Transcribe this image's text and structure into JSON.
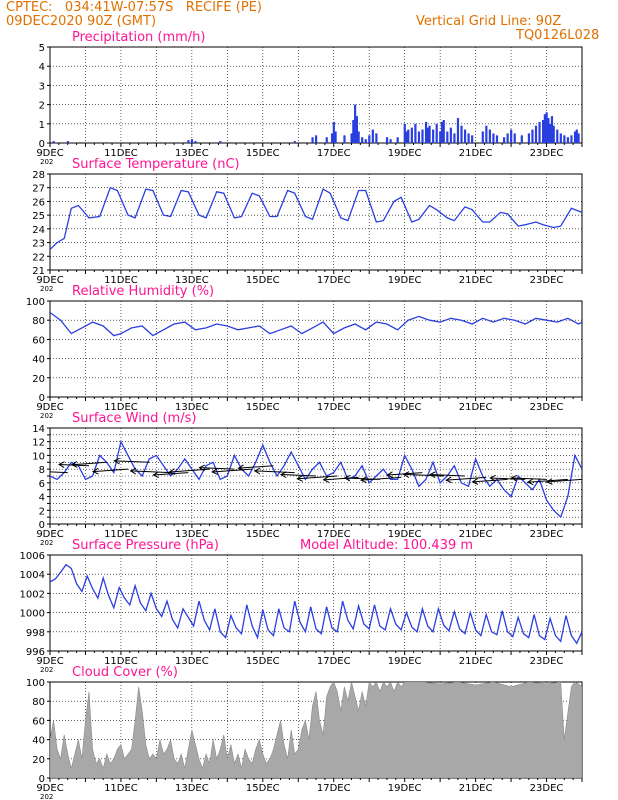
{
  "header": {
    "line1": "CPTEC:   034:41W-07:57S   RECIFE (PE)",
    "line2": "09DEC2020 90Z (GMT)",
    "grid_line": "Vertical Grid Line: 90Z",
    "code": "TQ0126L028"
  },
  "colors": {
    "accent": "#e07000",
    "title": "#ff1493",
    "series": "#2a3fe0",
    "cloud": "#a8a8a8",
    "arrow": "#000000"
  },
  "x_labels": [
    "9DEC",
    "11DEC",
    "13DEC",
    "15DEC",
    "17DEC",
    "19DEC",
    "21DEC",
    "23DEC"
  ],
  "x_sublabel": "202",
  "chart_data": [
    {
      "type": "bar",
      "title": "Precipitation  (mm/h)",
      "ylim": [
        0,
        5
      ],
      "yticks": [
        0,
        1,
        2,
        3,
        4,
        5
      ],
      "xrange_days": [
        9,
        24
      ],
      "values": [
        [
          9.1,
          0.1
        ],
        [
          9.5,
          0.1
        ],
        [
          12.9,
          0.15
        ],
        [
          13.0,
          0.2
        ],
        [
          13.1,
          0.1
        ],
        [
          13.8,
          0.1
        ],
        [
          15.9,
          0.1
        ],
        [
          16.4,
          0.3
        ],
        [
          16.5,
          0.4
        ],
        [
          16.8,
          0.3
        ],
        [
          16.95,
          0.5
        ],
        [
          17.0,
          1.1
        ],
        [
          17.05,
          0.6
        ],
        [
          17.3,
          0.4
        ],
        [
          17.5,
          0.5
        ],
        [
          17.55,
          1.2
        ],
        [
          17.6,
          2.0
        ],
        [
          17.65,
          1.4
        ],
        [
          17.7,
          0.6
        ],
        [
          17.8,
          0.3
        ],
        [
          17.9,
          0.2
        ],
        [
          18.0,
          0.4
        ],
        [
          18.1,
          0.7
        ],
        [
          18.2,
          0.5
        ],
        [
          18.5,
          0.3
        ],
        [
          18.6,
          0.2
        ],
        [
          18.8,
          0.3
        ],
        [
          19.0,
          1.0
        ],
        [
          19.05,
          0.6
        ],
        [
          19.1,
          0.7
        ],
        [
          19.2,
          0.8
        ],
        [
          19.3,
          1.0
        ],
        [
          19.4,
          0.6
        ],
        [
          19.5,
          0.7
        ],
        [
          19.6,
          1.1
        ],
        [
          19.65,
          0.8
        ],
        [
          19.7,
          0.9
        ],
        [
          19.8,
          0.7
        ],
        [
          19.9,
          1.0
        ],
        [
          20.0,
          0.6
        ],
        [
          20.05,
          1.1
        ],
        [
          20.1,
          1.2
        ],
        [
          20.2,
          0.6
        ],
        [
          20.3,
          0.8
        ],
        [
          20.4,
          0.5
        ],
        [
          20.5,
          1.3
        ],
        [
          20.6,
          0.9
        ],
        [
          20.7,
          0.7
        ],
        [
          20.8,
          0.5
        ],
        [
          20.9,
          0.4
        ],
        [
          21.2,
          0.6
        ],
        [
          21.3,
          0.9
        ],
        [
          21.4,
          0.7
        ],
        [
          21.5,
          0.5
        ],
        [
          21.6,
          0.4
        ],
        [
          21.8,
          0.3
        ],
        [
          21.9,
          0.5
        ],
        [
          22.0,
          0.7
        ],
        [
          22.1,
          0.5
        ],
        [
          22.3,
          0.4
        ],
        [
          22.5,
          0.5
        ],
        [
          22.6,
          0.7
        ],
        [
          22.7,
          0.9
        ],
        [
          22.8,
          1.1
        ],
        [
          22.9,
          1.2
        ],
        [
          22.95,
          1.5
        ],
        [
          23.0,
          1.6
        ],
        [
          23.05,
          1.3
        ],
        [
          23.1,
          1.0
        ],
        [
          23.15,
          1.4
        ],
        [
          23.2,
          0.9
        ],
        [
          23.3,
          0.7
        ],
        [
          23.4,
          0.5
        ],
        [
          23.5,
          0.4
        ],
        [
          23.6,
          0.3
        ],
        [
          23.7,
          0.4
        ],
        [
          23.8,
          0.6
        ],
        [
          23.85,
          0.7
        ],
        [
          23.9,
          0.5
        ]
      ]
    },
    {
      "type": "line",
      "title": "Surface Temperature (nC)",
      "ylim": [
        21,
        28
      ],
      "yticks": [
        21,
        22,
        23,
        24,
        25,
        26,
        27,
        28
      ],
      "xrange_days": [
        9,
        24
      ],
      "x": [
        9.0,
        9.2,
        9.4,
        9.6,
        9.8,
        10.1,
        10.4,
        10.7,
        10.9,
        11.2,
        11.4,
        11.7,
        11.9,
        12.2,
        12.4,
        12.7,
        12.9,
        13.2,
        13.4,
        13.7,
        13.9,
        14.2,
        14.4,
        14.7,
        14.9,
        15.2,
        15.4,
        15.7,
        15.9,
        16.2,
        16.4,
        16.7,
        16.9,
        17.2,
        17.4,
        17.7,
        17.9,
        18.2,
        18.4,
        18.7,
        18.9,
        19.2,
        19.4,
        19.7,
        19.9,
        20.2,
        20.4,
        20.7,
        20.9,
        21.2,
        21.4,
        21.7,
        21.9,
        22.2,
        22.4,
        22.7,
        22.9,
        23.2,
        23.4,
        23.7,
        23.9,
        24.0
      ],
      "y": [
        22.5,
        23.0,
        23.3,
        25.5,
        25.7,
        24.8,
        24.9,
        27.0,
        26.8,
        25.0,
        24.8,
        26.9,
        26.8,
        25.0,
        24.9,
        26.8,
        26.7,
        25.0,
        24.8,
        26.7,
        26.6,
        24.8,
        24.9,
        26.6,
        26.4,
        24.9,
        24.9,
        26.8,
        26.6,
        24.9,
        24.7,
        26.9,
        26.6,
        24.8,
        24.6,
        26.8,
        26.8,
        24.5,
        24.6,
        26.0,
        26.3,
        24.5,
        24.7,
        25.7,
        25.4,
        24.8,
        24.6,
        25.6,
        25.4,
        24.5,
        24.5,
        25.2,
        25.1,
        24.2,
        24.3,
        24.5,
        24.3,
        24.1,
        24.2,
        25.5,
        25.3,
        25.2
      ]
    },
    {
      "type": "line",
      "title": "Relative Humidity (%)",
      "ylim": [
        0,
        100
      ],
      "yticks": [
        0,
        20,
        40,
        60,
        80,
        100
      ],
      "xrange_days": [
        9,
        24
      ],
      "x": [
        9.0,
        9.3,
        9.6,
        9.9,
        10.2,
        10.5,
        10.8,
        11.0,
        11.3,
        11.6,
        11.9,
        12.2,
        12.5,
        12.8,
        13.1,
        13.4,
        13.7,
        14.0,
        14.3,
        14.6,
        14.9,
        15.2,
        15.5,
        15.8,
        16.1,
        16.4,
        16.7,
        17.0,
        17.3,
        17.6,
        17.9,
        18.2,
        18.5,
        18.8,
        19.1,
        19.4,
        19.7,
        20.0,
        20.3,
        20.6,
        20.9,
        21.2,
        21.5,
        21.8,
        22.1,
        22.4,
        22.7,
        23.0,
        23.3,
        23.6,
        23.9,
        24.0
      ],
      "y": [
        88,
        80,
        66,
        72,
        78,
        74,
        64,
        66,
        72,
        74,
        64,
        70,
        76,
        78,
        70,
        72,
        76,
        74,
        70,
        72,
        74,
        66,
        70,
        74,
        66,
        72,
        78,
        66,
        72,
        76,
        70,
        78,
        76,
        70,
        80,
        84,
        80,
        78,
        82,
        80,
        76,
        82,
        78,
        82,
        80,
        76,
        82,
        80,
        78,
        82,
        76,
        78
      ]
    },
    {
      "type": "line",
      "title": "Surface Wind (m/s)",
      "ylim": [
        0,
        14
      ],
      "yticks": [
        0,
        1,
        2,
        3,
        4,
        5,
        6,
        7,
        8,
        9,
        10,
        11,
        12,
        13,
        14
      ],
      "ytick_labels": [
        0,
        2,
        4,
        6,
        8,
        10,
        12,
        14
      ],
      "xrange_days": [
        9,
        24
      ],
      "x": [
        9.0,
        9.2,
        9.4,
        9.6,
        9.8,
        10.0,
        10.2,
        10.4,
        10.6,
        10.8,
        11.0,
        11.2,
        11.4,
        11.6,
        11.8,
        12.0,
        12.2,
        12.4,
        12.6,
        12.8,
        13.0,
        13.2,
        13.4,
        13.6,
        13.8,
        14.0,
        14.2,
        14.4,
        14.6,
        14.8,
        15.0,
        15.2,
        15.4,
        15.6,
        15.8,
        16.0,
        16.2,
        16.4,
        16.6,
        16.8,
        17.0,
        17.2,
        17.4,
        17.6,
        17.8,
        18.0,
        18.2,
        18.4,
        18.6,
        18.8,
        19.0,
        19.2,
        19.4,
        19.6,
        19.8,
        20.0,
        20.2,
        20.4,
        20.6,
        20.8,
        21.0,
        21.2,
        21.4,
        21.6,
        21.8,
        22.0,
        22.2,
        22.4,
        22.6,
        22.8,
        23.0,
        23.2,
        23.4,
        23.6,
        23.8,
        24.0
      ],
      "y": [
        7.0,
        6.5,
        7.5,
        9.0,
        8.5,
        6.5,
        7.0,
        10.0,
        9.0,
        7.5,
        12.0,
        10.0,
        8.0,
        7.0,
        9.5,
        10.0,
        8.5,
        7.0,
        8.0,
        9.5,
        8.0,
        6.5,
        8.5,
        9.0,
        6.5,
        7.0,
        10.0,
        8.0,
        7.0,
        9.0,
        11.5,
        9.0,
        7.0,
        8.5,
        10.5,
        8.5,
        6.5,
        8.0,
        9.0,
        7.0,
        7.5,
        9.0,
        6.5,
        7.0,
        8.5,
        6.0,
        7.0,
        8.0,
        6.5,
        6.5,
        10.0,
        8.0,
        5.5,
        6.5,
        9.0,
        6.0,
        7.0,
        8.5,
        6.0,
        5.5,
        9.5,
        7.0,
        5.5,
        6.5,
        5.0,
        4.0,
        7.0,
        6.0,
        5.0,
        6.5,
        3.5,
        2.0,
        1.0,
        4.0,
        10.0,
        8.0
      ],
      "arrows": [
        [
          9.0,
          8.0,
          -8
        ],
        [
          9.5,
          7.5,
          -7
        ],
        [
          10.1,
          8.5,
          -6
        ],
        [
          10.6,
          9.0,
          -7
        ],
        [
          11.2,
          8.0,
          -7
        ],
        [
          11.8,
          9.0,
          -7
        ],
        [
          12.4,
          7.5,
          -8
        ],
        [
          12.9,
          7.5,
          -7
        ],
        [
          13.5,
          8.0,
          -8
        ],
        [
          14.2,
          8.0,
          -7
        ],
        [
          14.7,
          8.0,
          -8
        ],
        [
          15.3,
          8.5,
          -7
        ],
        [
          15.9,
          7.5,
          -8
        ],
        [
          16.5,
          7.0,
          -7
        ],
        [
          17.1,
          7.0,
          -8
        ],
        [
          17.7,
          6.8,
          -7
        ],
        [
          18.3,
          6.5,
          -7
        ],
        [
          18.9,
          6.8,
          -8
        ],
        [
          19.5,
          7.5,
          -7
        ],
        [
          20.1,
          7.0,
          -8
        ],
        [
          20.7,
          7.0,
          -7
        ],
        [
          21.3,
          6.8,
          -8
        ],
        [
          21.9,
          6.5,
          -7
        ],
        [
          22.4,
          6.5,
          -7
        ],
        [
          23.0,
          6.5,
          -7
        ],
        [
          23.6,
          6.5,
          -8
        ],
        [
          24.0,
          6.5,
          -7
        ]
      ]
    },
    {
      "type": "line",
      "title": "Surface Pressure (hPa)",
      "annotation": "Model Altitude: 100.439 m",
      "ylim": [
        996,
        1006
      ],
      "yticks": [
        996,
        998,
        1000,
        1002,
        1004,
        1006
      ],
      "xrange_days": [
        9,
        24
      ],
      "x": [
        9.0,
        9.15,
        9.3,
        9.45,
        9.6,
        9.75,
        9.9,
        10.05,
        10.2,
        10.35,
        10.5,
        10.65,
        10.8,
        10.95,
        11.1,
        11.25,
        11.4,
        11.55,
        11.7,
        11.85,
        12.0,
        12.15,
        12.3,
        12.45,
        12.6,
        12.75,
        12.9,
        13.05,
        13.2,
        13.35,
        13.5,
        13.65,
        13.8,
        13.95,
        14.1,
        14.25,
        14.4,
        14.55,
        14.7,
        14.85,
        15.0,
        15.15,
        15.3,
        15.45,
        15.6,
        15.75,
        15.9,
        16.05,
        16.2,
        16.35,
        16.5,
        16.65,
        16.8,
        16.95,
        17.1,
        17.25,
        17.4,
        17.55,
        17.7,
        17.85,
        18.0,
        18.15,
        18.3,
        18.45,
        18.6,
        18.75,
        18.9,
        19.05,
        19.2,
        19.35,
        19.5,
        19.65,
        19.8,
        19.95,
        20.1,
        20.25,
        20.4,
        20.55,
        20.7,
        20.85,
        21.0,
        21.15,
        21.3,
        21.45,
        21.6,
        21.75,
        21.9,
        22.05,
        22.2,
        22.35,
        22.5,
        22.65,
        22.8,
        22.95,
        23.1,
        23.25,
        23.4,
        23.55,
        23.7,
        23.85,
        24.0
      ],
      "y": [
        1003.2,
        1003.5,
        1004.2,
        1005.0,
        1004.6,
        1003.0,
        1002.2,
        1003.8,
        1002.5,
        1001.5,
        1003.6,
        1001.8,
        1000.5,
        1002.6,
        1001.5,
        1000.8,
        1002.8,
        1001.0,
        1000.2,
        1002.0,
        1000.4,
        999.6,
        1001.2,
        999.3,
        998.4,
        1000.4,
        999.5,
        998.6,
        1001.2,
        999.2,
        998.2,
        1000.4,
        998.0,
        997.4,
        999.7,
        998.4,
        997.8,
        1000.8,
        998.6,
        997.4,
        1000.3,
        998.2,
        997.6,
        1000.4,
        998.4,
        998.0,
        1001.2,
        999.0,
        998.0,
        1000.6,
        998.3,
        997.8,
        1000.6,
        998.4,
        998.0,
        1001.2,
        999.2,
        998.3,
        1000.7,
        998.8,
        998.3,
        1000.8,
        998.6,
        998.2,
        1000.4,
        998.8,
        998.2,
        1000.0,
        998.5,
        998.0,
        1000.4,
        998.6,
        998.0,
        1000.4,
        998.7,
        998.1,
        1000.1,
        998.3,
        997.8,
        1000.0,
        998.2,
        997.6,
        999.8,
        998.0,
        997.7,
        1000.2,
        998.0,
        997.5,
        999.5,
        997.8,
        997.4,
        999.8,
        997.6,
        997.2,
        999.4,
        997.6,
        997.0,
        999.7,
        997.6,
        996.8,
        998.0
      ]
    },
    {
      "type": "area",
      "title": "Cloud Cover (%)",
      "ylim": [
        0,
        100
      ],
      "yticks": [
        0,
        20,
        40,
        60,
        80,
        100
      ],
      "xrange_days": [
        9,
        24
      ],
      "x": [
        9.0,
        9.1,
        9.2,
        9.3,
        9.4,
        9.5,
        9.6,
        9.7,
        9.8,
        9.9,
        10.0,
        10.1,
        10.2,
        10.3,
        10.4,
        10.5,
        10.6,
        10.7,
        10.8,
        10.9,
        11.0,
        11.1,
        11.2,
        11.3,
        11.4,
        11.5,
        11.6,
        11.7,
        11.8,
        11.9,
        12.0,
        12.1,
        12.2,
        12.3,
        12.4,
        12.5,
        12.6,
        12.7,
        12.8,
        12.9,
        13.0,
        13.1,
        13.2,
        13.3,
        13.4,
        13.5,
        13.6,
        13.7,
        13.8,
        13.9,
        14.0,
        14.1,
        14.2,
        14.3,
        14.4,
        14.5,
        14.6,
        14.7,
        14.8,
        14.9,
        15.0,
        15.1,
        15.2,
        15.3,
        15.4,
        15.5,
        15.6,
        15.7,
        15.8,
        15.9,
        16.0,
        16.1,
        16.2,
        16.3,
        16.4,
        16.5,
        16.6,
        16.7,
        16.8,
        16.9,
        17.0,
        17.1,
        17.2,
        17.3,
        17.4,
        17.5,
        17.6,
        17.7,
        17.8,
        17.9,
        18.0,
        18.1,
        18.2,
        18.3,
        18.4,
        18.5,
        18.6,
        18.7,
        18.8,
        18.9,
        19.0,
        19.5,
        20.0,
        20.5,
        21.0,
        21.5,
        22.0,
        22.5,
        23.0,
        23.4,
        23.5,
        23.7,
        23.8,
        23.9,
        24.0
      ],
      "y": [
        40,
        60,
        30,
        20,
        45,
        25,
        10,
        25,
        40,
        20,
        60,
        90,
        30,
        15,
        20,
        10,
        25,
        15,
        20,
        30,
        35,
        20,
        25,
        30,
        60,
        95,
        70,
        35,
        20,
        25,
        20,
        40,
        25,
        30,
        40,
        20,
        15,
        25,
        10,
        30,
        50,
        35,
        20,
        10,
        25,
        15,
        40,
        20,
        30,
        45,
        20,
        35,
        15,
        25,
        10,
        30,
        20,
        15,
        30,
        40,
        25,
        15,
        20,
        30,
        45,
        60,
        35,
        20,
        50,
        25,
        30,
        50,
        60,
        40,
        75,
        90,
        60,
        45,
        85,
        95,
        100,
        90,
        70,
        95,
        80,
        100,
        85,
        70,
        90,
        75,
        100,
        95,
        100,
        90,
        100,
        95,
        100,
        90,
        100,
        95,
        100,
        100,
        98,
        100,
        97,
        100,
        95,
        100,
        98,
        100,
        40,
        95,
        100,
        98,
        95
      ]
    }
  ]
}
